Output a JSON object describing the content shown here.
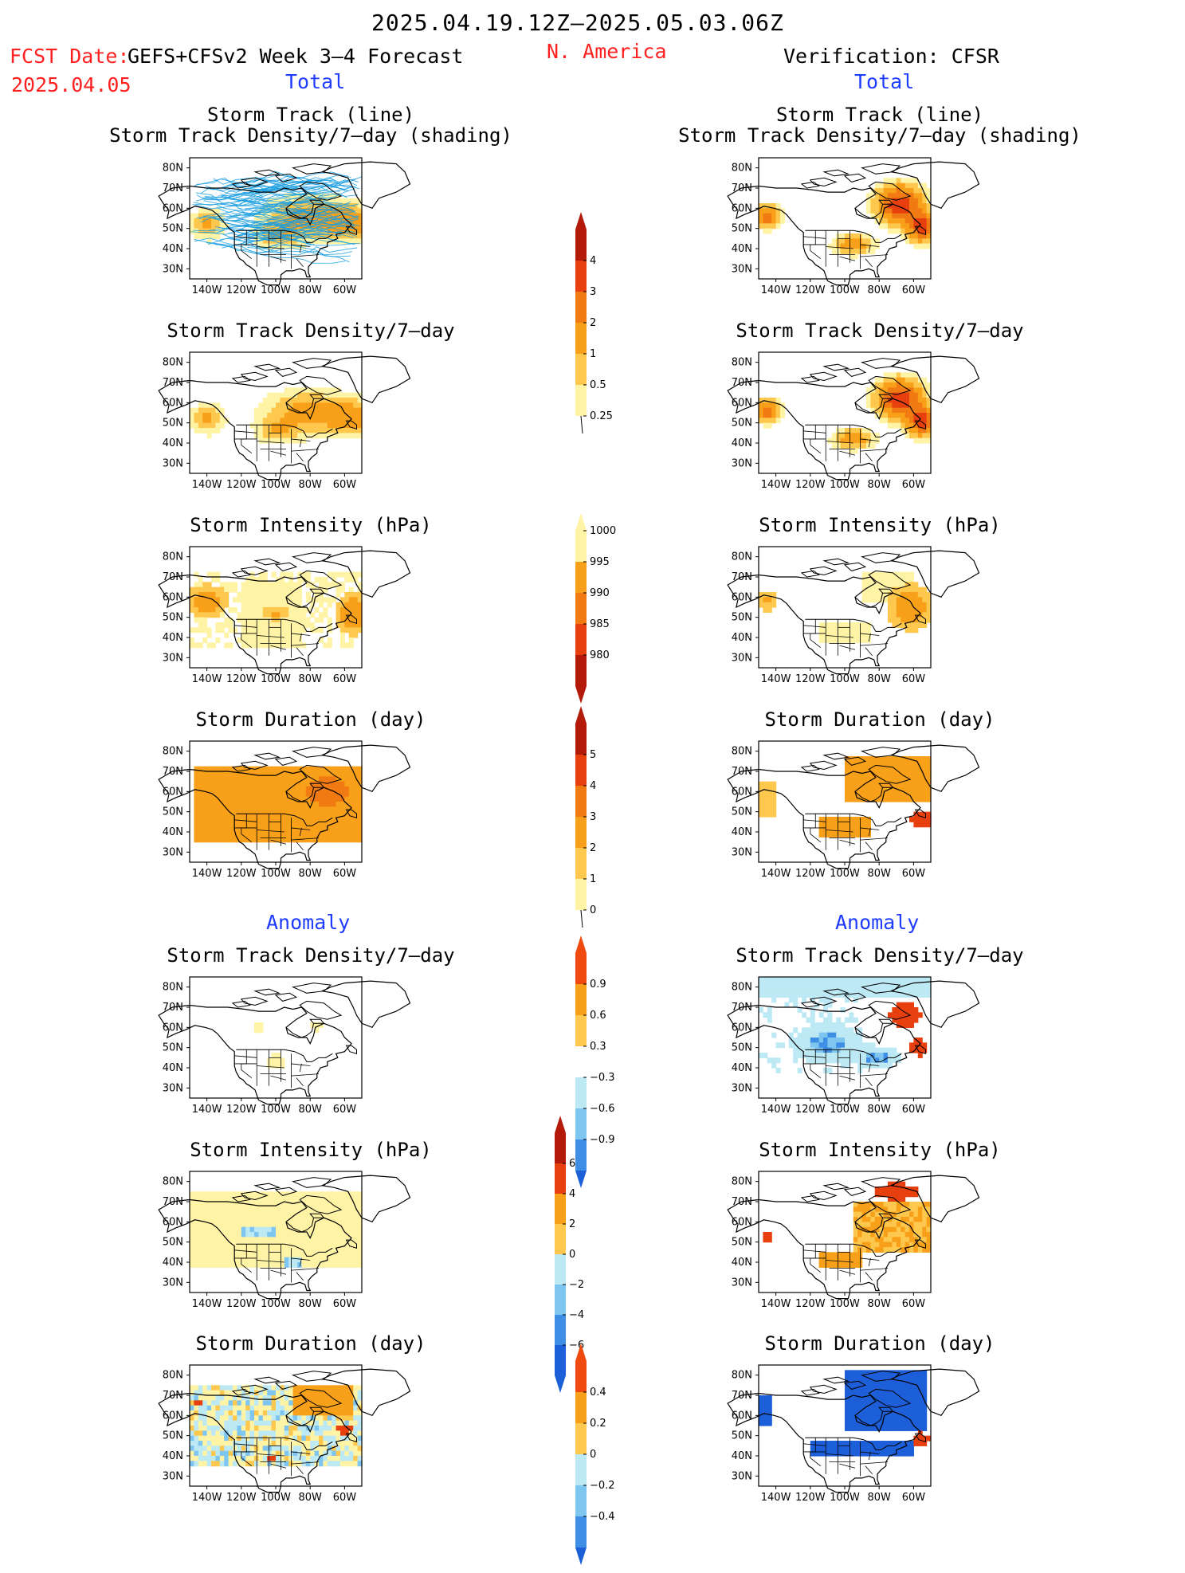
{
  "header": {
    "date_range": "2025.04.19.12Z–2025.05.03.06Z",
    "fcst_date_label": "FCST Date:",
    "fcst_date": "2025.04.05",
    "model": "GEFS+CFSv2 Week 3–4 Forecast",
    "region": "N. America",
    "verification": "Verification: CFSR",
    "left_section_total": "Total",
    "right_section_total": "Total",
    "left_section_anomaly": "Anomaly",
    "right_section_anomaly": "Anomaly"
  },
  "axes": {
    "y_ticks": [
      "80N",
      "70N",
      "60N",
      "50N",
      "40N",
      "30N"
    ],
    "x_ticks": [
      "140W",
      "120W",
      "100W",
      "80W",
      "60W"
    ]
  },
  "panels": {
    "p1_title_line1": "Storm Track (line)",
    "p1_title_line2": "Storm Track Density/7–day (shading)",
    "density_title": "Storm Track Density/7–day",
    "intensity_title": "Storm Intensity (hPa)",
    "duration_title": "Storm Duration (day)"
  },
  "colorbars": {
    "density": [
      "4",
      "3",
      "2",
      "1",
      "0.5",
      "0.25"
    ],
    "intensity": [
      "1000",
      "995",
      "990",
      "985",
      "980"
    ],
    "duration": [
      "5",
      "4",
      "3",
      "2",
      "1",
      "0"
    ],
    "density_anom": [
      "0.9",
      "0.6",
      "0.3",
      "−0.3",
      "−0.6",
      "−0.9"
    ],
    "intensity_anom": [
      "6",
      "4",
      "2",
      "0",
      "−2",
      "−4",
      "−6"
    ],
    "duration_anom": [
      "0.4",
      "0.2",
      "0",
      "−0.2",
      "−0.4"
    ]
  },
  "colors": {
    "pale": "#fff3a6",
    "light_orange": "#fdc84d",
    "orange": "#f8a019",
    "dark_orange": "#f17a12",
    "red": "#e7400e",
    "dark_red": "#b41a0a",
    "lightblue": "#bde9f5",
    "blue": "#7ec5f0",
    "mid_blue": "#3e8ee6",
    "deep_blue": "#1d5fd8",
    "track_line": "#1a9ee0"
  }
}
